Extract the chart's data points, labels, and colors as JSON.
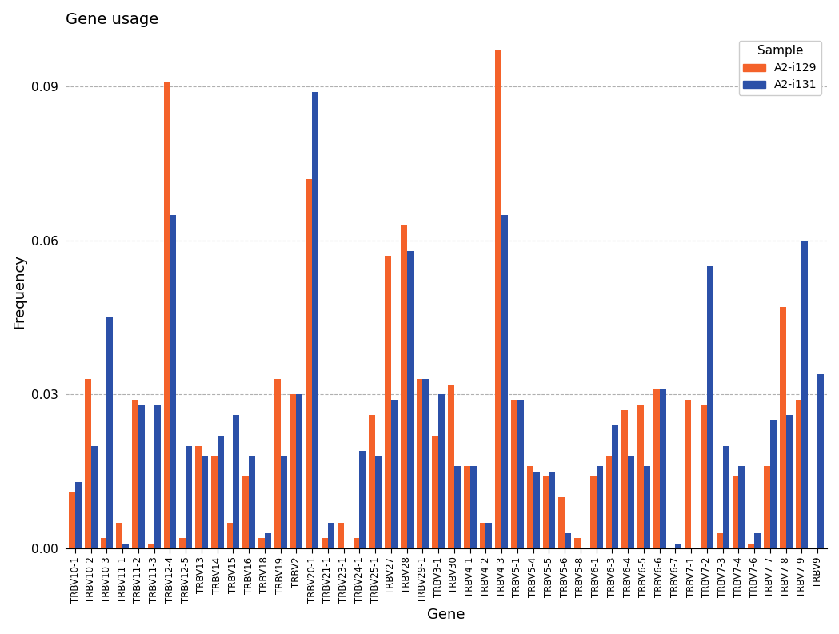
{
  "title": "Gene usage",
  "xlabel": "Gene",
  "ylabel": "Frequency",
  "ylim": [
    0,
    0.1
  ],
  "yticks": [
    0.0,
    0.03,
    0.06,
    0.09
  ],
  "color_A2i129": "#F4622A",
  "color_A2i131": "#2B50A8",
  "legend_title": "Sample",
  "legend_labels": [
    "A2-i129",
    "A2-i131"
  ],
  "categories": [
    "TRBV10-1",
    "TRBV10-2",
    "TRBV10-3",
    "TRBV11-1",
    "TRBV11-2",
    "TRBV11-3",
    "TRBV12-4",
    "TRBV12-5",
    "TRBV13",
    "TRBV14",
    "TRBV15",
    "TRBV16",
    "TRBV18",
    "TRBV19",
    "TRBV2",
    "TRBV20-1",
    "TRBV21-1",
    "TRBV23-1",
    "TRBV24-1",
    "TRBV25-1",
    "TRBV27",
    "TRBV28",
    "TRBV29-1",
    "TRBV3-1",
    "TRBV30",
    "TRBV4-1",
    "TRBV4-2",
    "TRBV4-3",
    "TRBV5-1",
    "TRBV5-4",
    "TRBV5-5",
    "TRBV5-6",
    "TRBV5-8",
    "TRBV6-1",
    "TRBV6-3",
    "TRBV6-4",
    "TRBV6-5",
    "TRBV6-6",
    "TRBV6-7",
    "TRBV7-1",
    "TRBV7-2",
    "TRBV7-3",
    "TRBV7-4",
    "TRBV7-6",
    "TRBV7-7",
    "TRBV7-8",
    "TRBV7-9",
    "TRBV9"
  ],
  "values_A2i129": [
    0.011,
    0.033,
    0.002,
    0.005,
    0.029,
    0.001,
    0.091,
    0.002,
    0.02,
    0.018,
    0.005,
    0.014,
    0.002,
    0.033,
    0.03,
    0.072,
    0.002,
    0.005,
    0.002,
    0.026,
    0.057,
    0.063,
    0.033,
    0.022,
    0.032,
    0.016,
    0.005,
    0.097,
    0.029,
    0.016,
    0.014,
    0.01,
    0.002,
    0.014,
    0.018,
    0.027,
    0.028,
    0.031,
    0.0,
    0.029,
    0.028,
    0.003,
    0.014,
    0.001,
    0.016,
    0.047,
    0.029,
    0.0
  ],
  "values_A2i131": [
    0.013,
    0.02,
    0.045,
    0.001,
    0.028,
    0.028,
    0.065,
    0.02,
    0.018,
    0.022,
    0.026,
    0.018,
    0.003,
    0.018,
    0.03,
    0.089,
    0.005,
    0.0,
    0.019,
    0.018,
    0.029,
    0.058,
    0.033,
    0.03,
    0.016,
    0.016,
    0.005,
    0.065,
    0.029,
    0.015,
    0.015,
    0.003,
    0.0,
    0.016,
    0.024,
    0.018,
    0.016,
    0.031,
    0.001,
    0.0,
    0.055,
    0.02,
    0.016,
    0.003,
    0.025,
    0.026,
    0.06,
    0.034
  ]
}
